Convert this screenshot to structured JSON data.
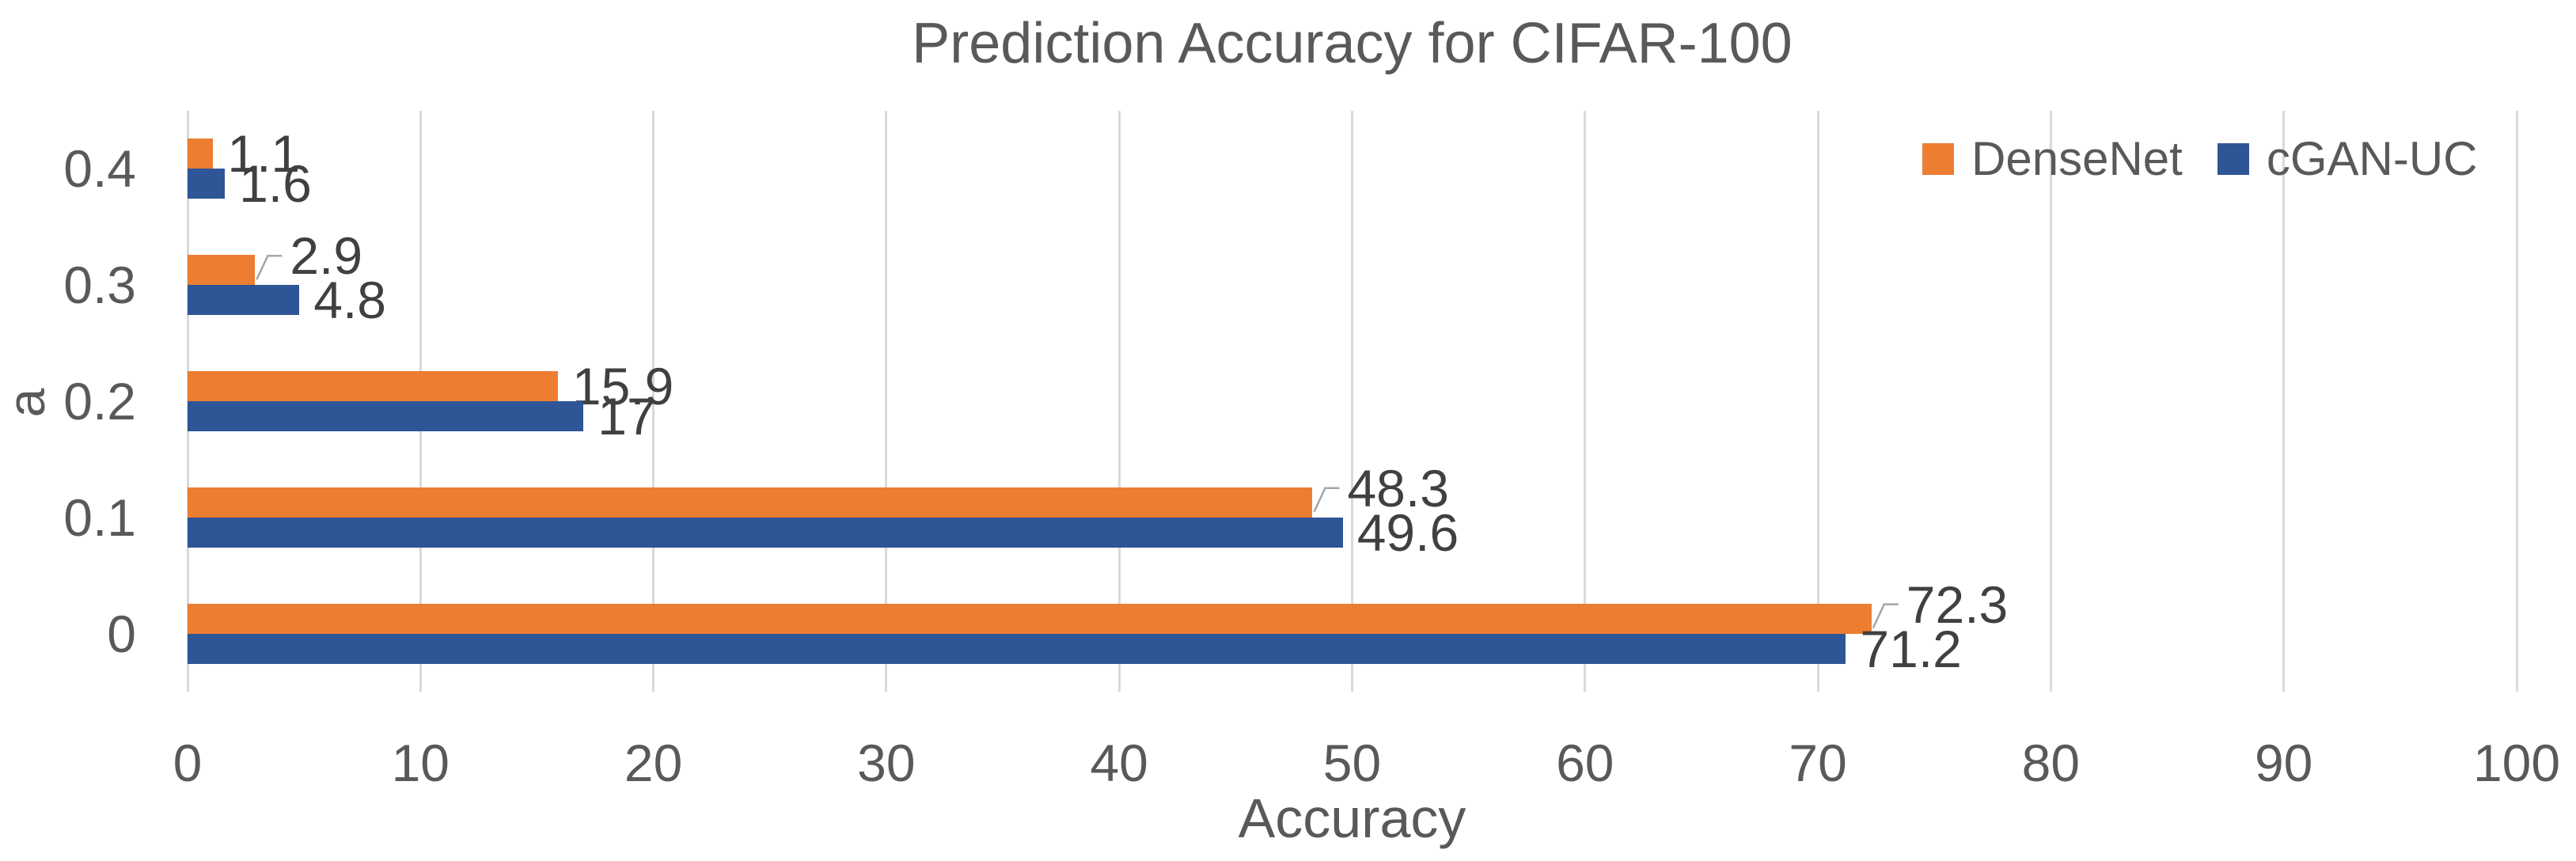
{
  "chart_data": {
    "type": "bar",
    "orientation": "horizontal",
    "title": "Prediction Accuracy for CIFAR-100",
    "xlabel": "Accuracy",
    "ylabel": "a",
    "xlim": [
      0,
      100
    ],
    "xticks": [
      0,
      10,
      20,
      30,
      40,
      50,
      60,
      70,
      80,
      90,
      100
    ],
    "grid": "vertical-gridlines-on",
    "legend_position": "top-right-inside",
    "categories": [
      "0.4",
      "0.3",
      "0.2",
      "0.1",
      "0"
    ],
    "series": [
      {
        "name": "DenseNet",
        "color": "#ED7D31",
        "values": [
          1.1,
          2.9,
          15.9,
          48.3,
          72.3
        ],
        "labels": [
          "1.1",
          "2.9",
          "15.9",
          "48.3",
          "72.3"
        ],
        "label_leader_lines": [
          false,
          true,
          false,
          true,
          true
        ]
      },
      {
        "name": "cGAN-UC",
        "color": "#2E5596",
        "values": [
          1.6,
          4.8,
          17,
          49.6,
          71.2
        ],
        "labels": [
          "1.6",
          "4.8",
          "17",
          "49.6",
          "71.2"
        ],
        "label_leader_lines": [
          false,
          false,
          false,
          false,
          false
        ]
      }
    ],
    "colors": {
      "gridline": "#D9D9D9",
      "axis_text": "#595959",
      "title_text": "#595959",
      "data_label_text": "#404040",
      "leader_line": "#A6A6A6",
      "background": "#FFFFFF"
    }
  }
}
